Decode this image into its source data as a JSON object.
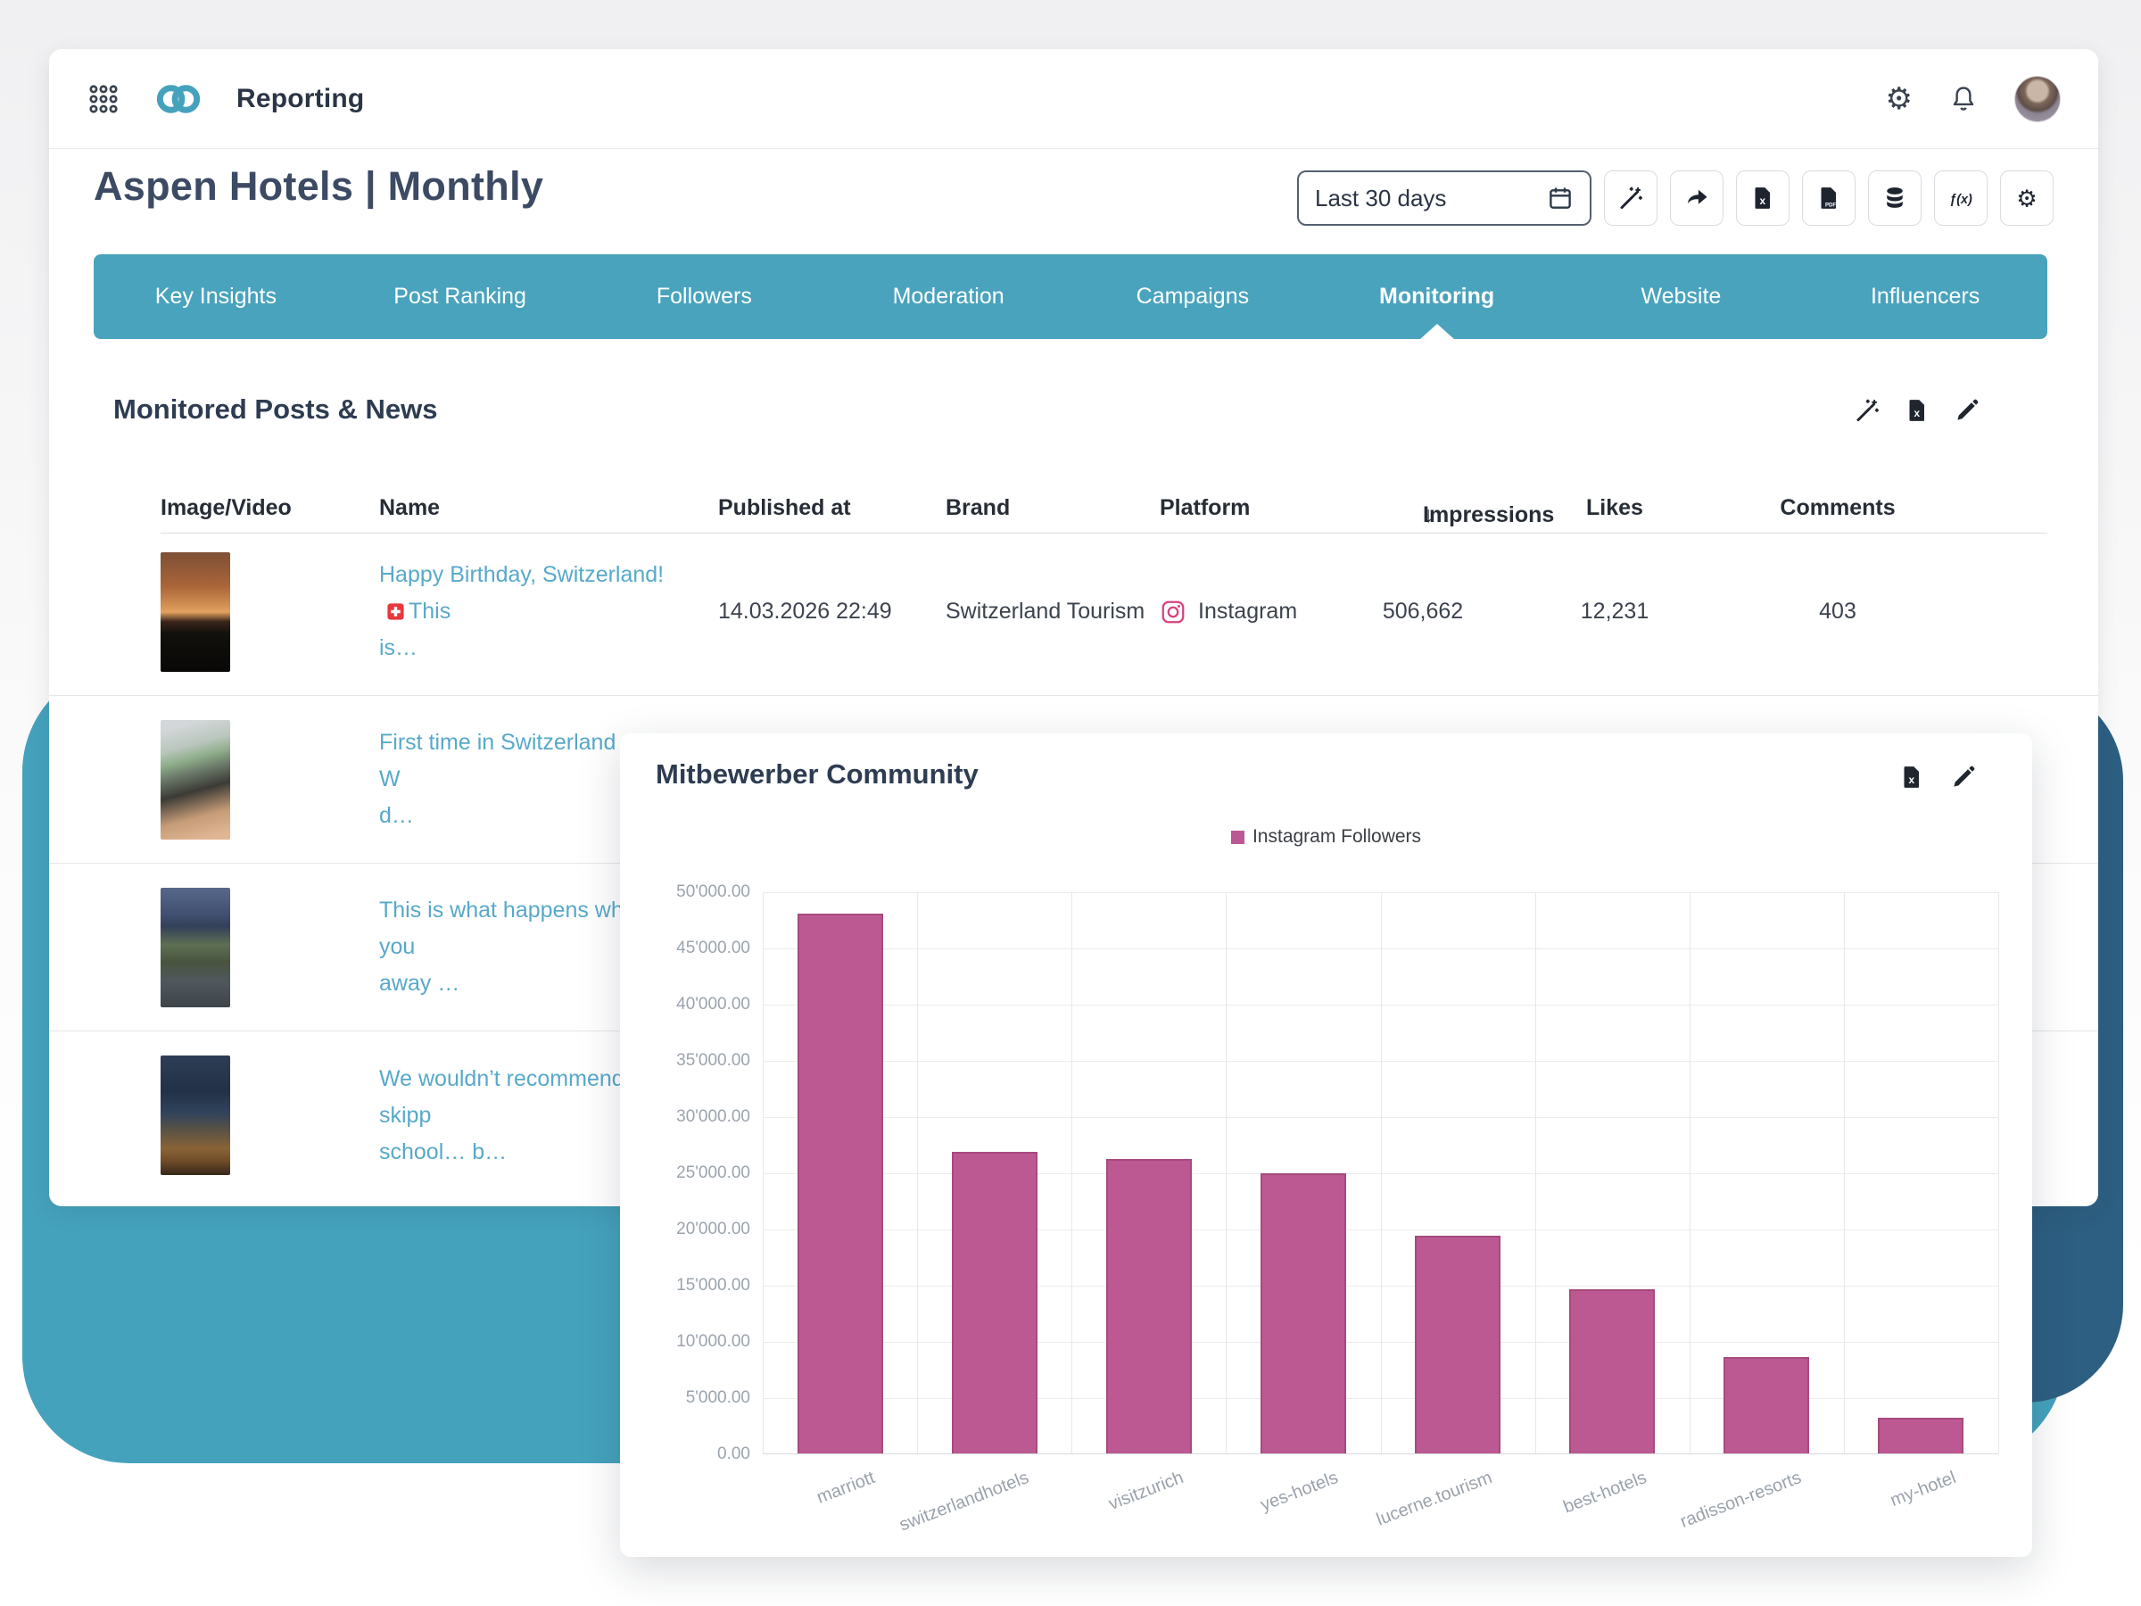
{
  "app": {
    "title": "Reporting"
  },
  "report": {
    "title": "Aspen Hotels | Monthly",
    "date_range": "Last 30 days",
    "toolbar_icons": [
      "wand",
      "share",
      "excel",
      "pdf",
      "database",
      "fx",
      "gear"
    ]
  },
  "tabs": {
    "items": [
      "Key Insights",
      "Post Ranking",
      "Followers",
      "Moderation",
      "Campaigns",
      "Monitoring",
      "Website",
      "Influencers"
    ],
    "active_index": 5
  },
  "monitored": {
    "title": "Monitored Posts & News",
    "header_icons": [
      "wand",
      "excel",
      "pencil"
    ],
    "columns": [
      "Image/Video",
      "Name",
      "Published at",
      "Brand",
      "Platform",
      "Impressions",
      "Likes",
      "Comments"
    ],
    "sort_column": "Impressions",
    "sort_arrow": "↓",
    "posts": [
      {
        "name_line1": "Happy Birthday, Switzerland!",
        "flag": true,
        "sparkle": false,
        "name_tail": "This",
        "name_line2": "is…",
        "published_at": "14.03.2026 22:49",
        "brand": "Switzerland Tourism",
        "platform": "Instagram",
        "impressions": "506,662",
        "likes": "12,231",
        "comments": "403",
        "thumb": "sunset"
      },
      {
        "name_line1": "First time in Switzerland",
        "flag": true,
        "sparkle": true,
        "name_tail": "W",
        "name_line2": "d…",
        "published_at": "",
        "brand": "",
        "platform": "",
        "impressions": "",
        "likes": "",
        "comments": "",
        "thumb": "train"
      },
      {
        "name_line1": "This is what happens when you",
        "flag": false,
        "sparkle": false,
        "name_tail": "",
        "name_line2": "away …",
        "published_at": "",
        "brand": "",
        "platform": "",
        "impressions": "",
        "likes": "",
        "comments": "",
        "thumb": "field"
      },
      {
        "name_line1": "We wouldn’t recommend skipp",
        "flag": false,
        "sparkle": false,
        "name_tail": "",
        "name_line2": "school… b…",
        "published_at": "",
        "brand": "",
        "platform": "",
        "impressions": "",
        "likes": "",
        "comments": "",
        "thumb": "lake"
      }
    ]
  },
  "competitor_card": {
    "title": "Mitbewerber Community",
    "header_icons": [
      "excel",
      "pencil"
    ],
    "legend": "Instagram Followers"
  },
  "chart_data": {
    "type": "bar",
    "title": "Mitbewerber Community",
    "legend": [
      "Instagram Followers"
    ],
    "legend_position": "top",
    "categories": [
      "marriott",
      "switzerlandhotels",
      "visitzurich",
      "yes-hotels",
      "lucerne.tourism",
      "best-hotels",
      "radisson-resorts",
      "my-hotel"
    ],
    "values": [
      48000,
      26800,
      26200,
      24900,
      19400,
      14600,
      8600,
      3200
    ],
    "xlabel": "",
    "ylabel": "",
    "ylim": [
      0,
      50000
    ],
    "y_tick_step": 5000,
    "y_tick_labels": [
      "0.00",
      "5'000.00",
      "10'000.00",
      "15'000.00",
      "20'000.00",
      "25'000.00",
      "30'000.00",
      "35'000.00",
      "40'000.00",
      "45'000.00",
      "50'000.00"
    ],
    "grid": true,
    "bar_color": "#bd5992"
  },
  "colors": {
    "teal": "#45a2bd",
    "dark_blue": "#2d5f82",
    "tabbar": "#49a3bd",
    "bar": "#bd5992",
    "bar_border": "#a64a7e",
    "link": "#57a9c9",
    "navy": "#2e3c52",
    "instagram": "#d6427e"
  },
  "icon_labels": {
    "fx": "ƒ(x)",
    "excel_letter": "x",
    "pdf_letter": "PDF",
    "gear_glyph": "⚙"
  }
}
